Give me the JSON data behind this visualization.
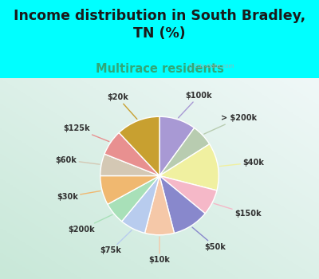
{
  "title": "Income distribution in South Bradley,\nTN (%)",
  "subtitle": "Multirace residents",
  "watermark": "ⓘ City-Data.com",
  "segments": [
    {
      "label": "$100k",
      "value": 10,
      "color": "#a899d4"
    },
    {
      "label": "> $200k",
      "value": 6,
      "color": "#b8ccb0"
    },
    {
      "label": "$40k",
      "value": 13,
      "color": "#f0f0a0"
    },
    {
      "label": "$150k",
      "value": 7,
      "color": "#f5b8c8"
    },
    {
      "label": "$50k",
      "value": 10,
      "color": "#8888cc"
    },
    {
      "label": "$10k",
      "value": 8,
      "color": "#f5c8a8"
    },
    {
      "label": "$75k",
      "value": 7,
      "color": "#b8ccee"
    },
    {
      "label": "$200k",
      "value": 6,
      "color": "#a8e0b8"
    },
    {
      "label": "$30k",
      "value": 8,
      "color": "#f0b870"
    },
    {
      "label": "$60k",
      "value": 6,
      "color": "#d4c8b4"
    },
    {
      "label": "$125k",
      "value": 7,
      "color": "#e89090"
    },
    {
      "label": "$20k",
      "value": 12,
      "color": "#c8a030"
    }
  ],
  "background_top": "#00ffff",
  "background_chart_grad_left": "#c8e8d8",
  "background_chart_grad_right": "#f0f8f8",
  "title_color": "#1a1a1a",
  "subtitle_color": "#30a878",
  "label_color": "#303030",
  "title_fontsize": 12.5,
  "subtitle_fontsize": 10.5,
  "label_fontsize": 7.0,
  "wedge_linewidth": 1.0,
  "wedge_edgecolor": "#ffffff"
}
